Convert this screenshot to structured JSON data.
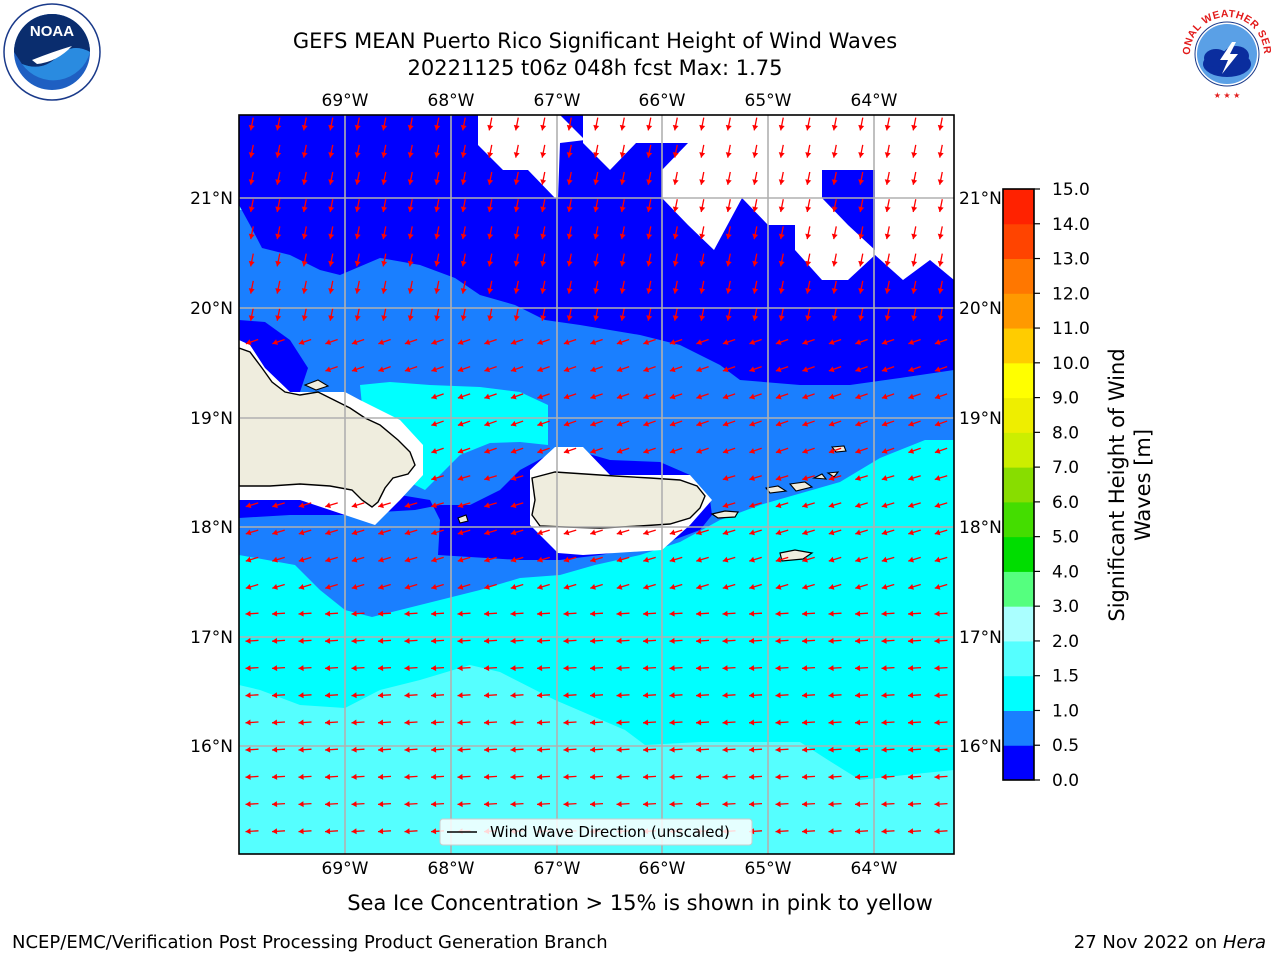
{
  "title": {
    "line1": "GEFS MEAN Puerto Rico Significant Height of Wind Waves",
    "line2": "20221125 t06z 048h fcst   Max: 1.75"
  },
  "map": {
    "lon_ticks": [
      "69°W",
      "68°W",
      "67°W",
      "66°W",
      "65°W",
      "64°W"
    ],
    "lat_ticks": [
      "21°N",
      "20°N",
      "19°N",
      "18°N",
      "17°N",
      "16°N"
    ],
    "legend_label": "Wind Wave Direction (unscaled)",
    "arrow_color": "#ff0000",
    "land_color": "#efedde"
  },
  "colorbar": {
    "label": "Significant Height of Wind Waves [m]",
    "label_line1": "Significant Height of Wind",
    "label_line2": "Waves [m]",
    "tick_labels": [
      "0.0",
      "0.5",
      "1.0",
      "1.5",
      "2.0",
      "3.0",
      "4.0",
      "5.0",
      "6.0",
      "7.0",
      "8.0",
      "9.0",
      "10.0",
      "11.0",
      "12.0",
      "13.0",
      "14.0",
      "15.0"
    ],
    "colors": [
      "#0000ff",
      "#1a7fff",
      "#00ffff",
      "#55ffff",
      "#aaffff",
      "#55ff7f",
      "#00dd00",
      "#44dd00",
      "#88dd00",
      "#ccee00",
      "#eeee00",
      "#ffff00",
      "#ffcc00",
      "#ff9900",
      "#ff7700",
      "#ff4400",
      "#ff2200"
    ]
  },
  "note": "Sea Ice Concentration > 15% is shown in pink to yellow",
  "footer": {
    "left": "NCEP/EMC/Verification Post Processing Product Generation Branch",
    "right_date": "27 Nov 2022 on ",
    "right_host": "Hera"
  },
  "logos": {
    "noaa": "NOAA",
    "nws": "NATIONAL WEATHER SERVICE"
  }
}
